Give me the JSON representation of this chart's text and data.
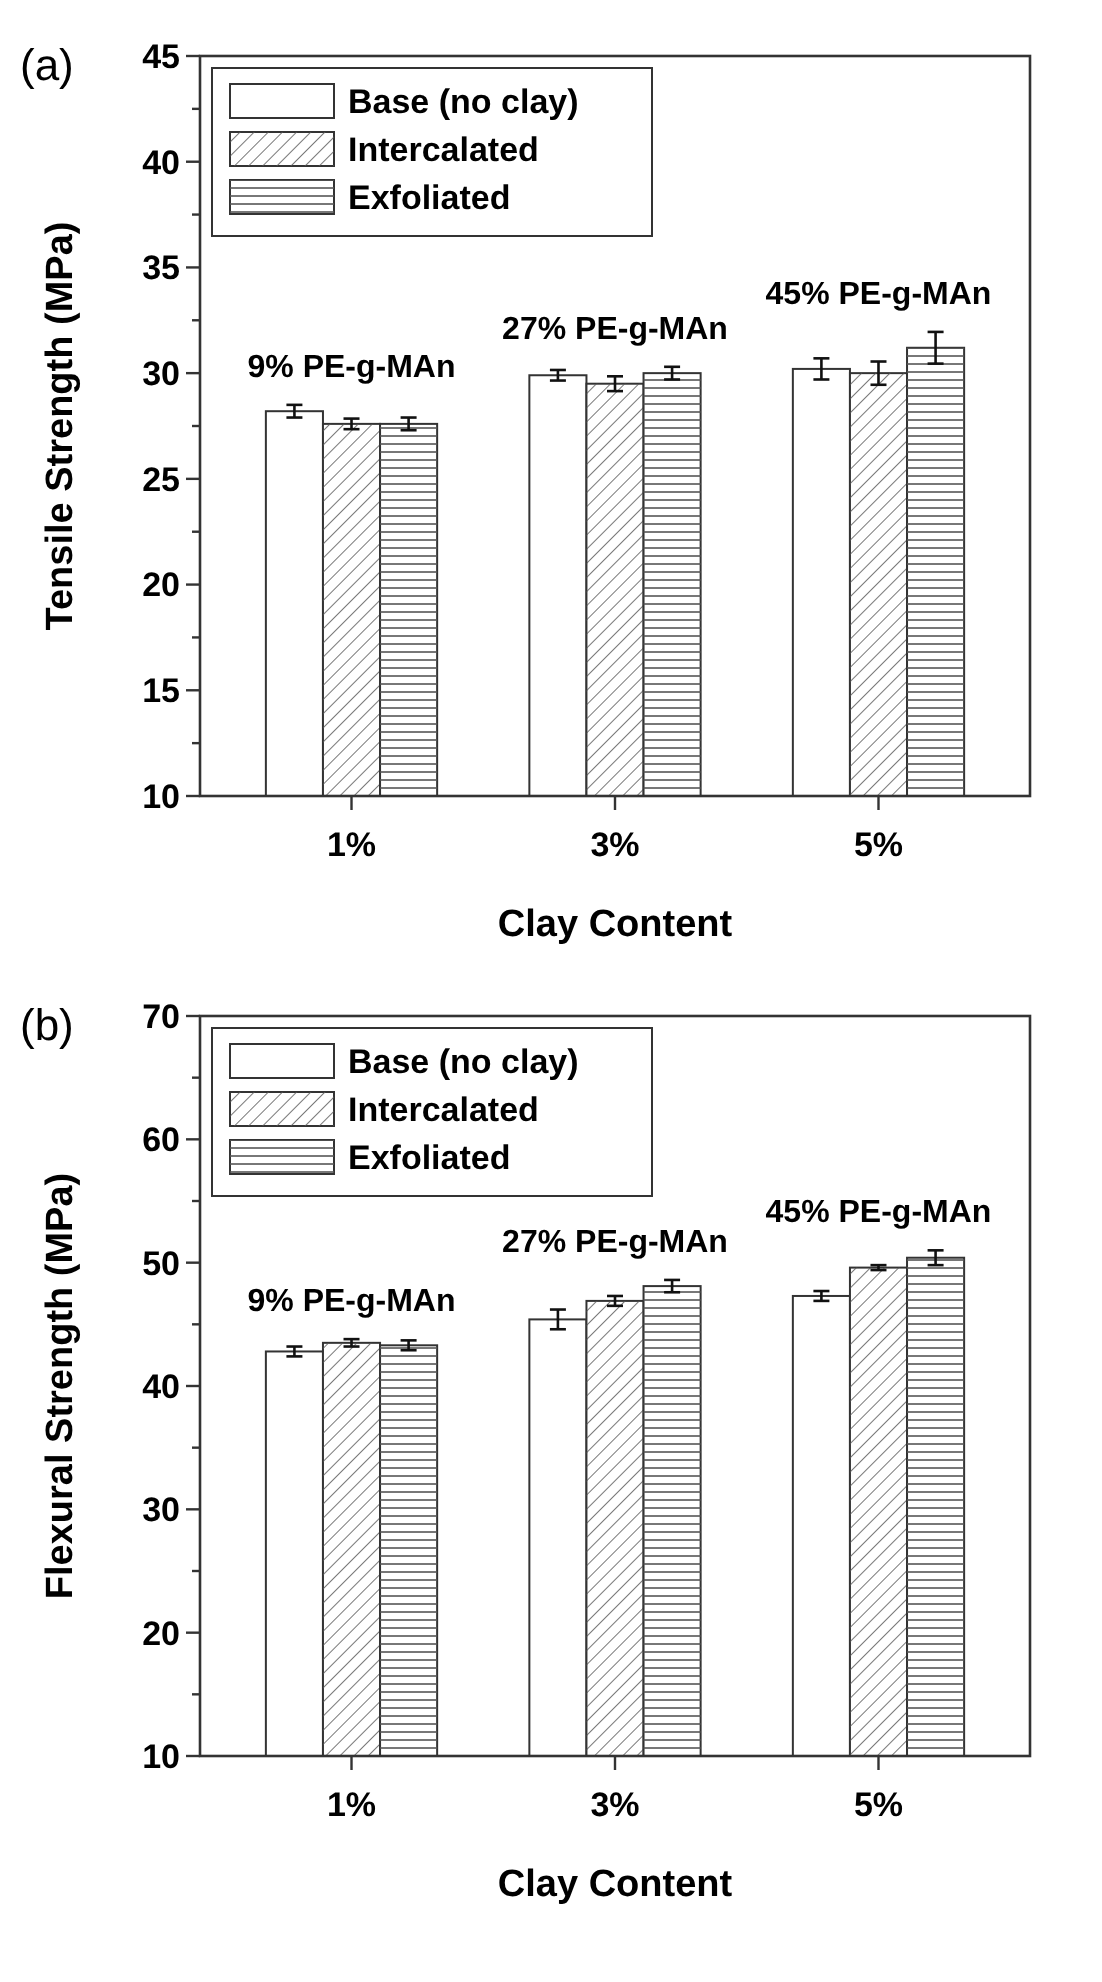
{
  "chart_data": [
    {
      "type": "bar",
      "title": "(a)",
      "xlabel": "Clay Content",
      "ylabel": "Tensile Strength (MPa)",
      "categories": [
        "1%",
        "3%",
        "5%"
      ],
      "series": [
        {
          "name": "Base (no clay)",
          "color": "#ffffff",
          "values": [
            28.2,
            29.9,
            30.2
          ],
          "errors": [
            0.3,
            0.25,
            0.5
          ]
        },
        {
          "name": "Intercalated",
          "color": "#ffffff",
          "values": [
            27.6,
            29.5,
            30.0
          ],
          "errors": [
            0.25,
            0.35,
            0.55
          ]
        },
        {
          "name": "Exfoliated",
          "color": "#ffffff",
          "values": [
            27.6,
            30.0,
            31.2
          ],
          "errors": [
            0.3,
            0.3,
            0.75
          ]
        }
      ],
      "ylim": [
        10,
        45
      ],
      "yticks": [
        10,
        {
          "value": 12.5,
          "label": null
        },
        15,
        {
          "value": 17.5,
          "label": null
        },
        20,
        {
          "value": 22.5,
          "label": null
        },
        25,
        {
          "value": 27.5,
          "label": null
        },
        30,
        {
          "value": 32.5,
          "label": null
        },
        35,
        {
          "value": 37.5,
          "label": null
        },
        40,
        {
          "value": 42.5,
          "label": null
        },
        45
      ],
      "annotations": [
        "9% PE-g-MAn",
        "27% PE-g-MAn",
        "45% PE-g-MAn"
      ],
      "legend": "top left",
      "grid": false
    },
    {
      "type": "bar",
      "title": "(b)",
      "xlabel": "Clay Content",
      "ylabel": "Flexural Strength (MPa)",
      "categories": [
        "1%",
        "3%",
        "5%"
      ],
      "series": [
        {
          "name": "Base (no clay)",
          "color": "#ffffff",
          "values": [
            42.8,
            45.4,
            47.3
          ],
          "errors": [
            0.4,
            0.8,
            0.4
          ]
        },
        {
          "name": "Intercalated",
          "color": "#ffffff",
          "values": [
            43.5,
            46.9,
            49.6
          ],
          "errors": [
            0.3,
            0.4,
            0.2
          ]
        },
        {
          "name": "Exfoliated",
          "color": "#ffffff",
          "values": [
            43.3,
            48.1,
            50.4
          ],
          "errors": [
            0.4,
            0.5,
            0.6
          ]
        }
      ],
      "ylim": [
        10,
        70
      ],
      "yticks": [
        10,
        {
          "value": 15,
          "label": null
        },
        20,
        {
          "value": 25,
          "label": null
        },
        30,
        {
          "value": 35,
          "label": null
        },
        40,
        {
          "value": 45,
          "label": null
        },
        50,
        {
          "value": 55,
          "label": null
        },
        60,
        {
          "value": 65,
          "label": null
        },
        70
      ],
      "annotations": [
        "9% PE-g-MAn",
        "27% PE-g-MAn",
        "45% PE-g-MAn"
      ],
      "legend": "top left",
      "grid": false
    }
  ]
}
